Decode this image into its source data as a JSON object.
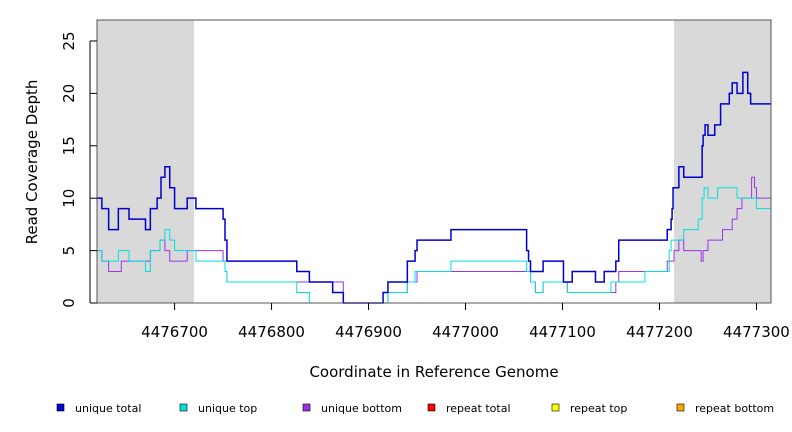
{
  "chart_data": {
    "type": "line",
    "xlabel": "Coordinate in Reference Genome",
    "ylabel": "Read Coverage Depth",
    "xlim": [
      4476620,
      4477315
    ],
    "ylim": [
      0,
      27
    ],
    "x_ticks": [
      4476700,
      4476800,
      4476900,
      4477000,
      4477100,
      4477200,
      4477300
    ],
    "x_tick_labels": [
      "4476700",
      "4476800",
      "4476900",
      "4477000",
      "4477100",
      "4477200",
      "4477300"
    ],
    "y_ticks": [
      0,
      5,
      10,
      15,
      20,
      25
    ],
    "y_tick_labels": [
      "0",
      "5",
      "10",
      "15",
      "20",
      "25"
    ],
    "shaded_regions": [
      [
        4476620,
        4476720
      ],
      [
        4477215,
        4477315
      ]
    ],
    "legend_position": "bottom",
    "series": [
      {
        "name": "unique total",
        "color": "#0000cc",
        "step_x": [
          4476620,
          4476625,
          4476632,
          4476642,
          4476653,
          4476670,
          4476675,
          4476682,
          4476686,
          4476690,
          4476695,
          4476700,
          4476713,
          4476722,
          4476750,
          4476752,
          4476754,
          4476826,
          4476839,
          4476863,
          4476874,
          4476915,
          4476920,
          4476940,
          4476948,
          4476950,
          4476952,
          4476985,
          4477063,
          4477065,
          4477067,
          4477072,
          4477080,
          4477101,
          4477105,
          4477110,
          4477134,
          4477143,
          4477155,
          4477158,
          4477185,
          4477208,
          4477210,
          4477212,
          4477213,
          4477214,
          4477215,
          4477220,
          4477225,
          4477244,
          4477245,
          4477247,
          4477250,
          4477257,
          4477263,
          4477272,
          4477275,
          4477280,
          4477286,
          4477291,
          4477294,
          4477297,
          4477299,
          4477300,
          4477305,
          4477315
        ],
        "step_y": [
          10,
          9,
          7,
          9,
          8,
          7,
          9,
          10,
          12,
          13,
          11,
          9,
          10,
          9,
          8,
          6,
          4,
          3,
          2,
          1,
          0,
          1,
          2,
          4,
          5,
          6,
          6,
          7,
          5,
          4,
          3,
          3,
          4,
          2,
          2,
          3,
          2,
          3,
          4,
          6,
          6,
          7,
          7,
          8,
          9,
          11,
          11,
          13,
          12,
          15,
          16,
          17,
          16,
          17,
          19,
          20,
          21,
          20,
          22,
          20,
          19,
          19,
          19,
          19,
          19,
          19
        ]
      },
      {
        "name": "unique top",
        "color": "#00e0e0",
        "step_x": [
          4476620,
          4476625,
          4476632,
          4476642,
          4476653,
          4476670,
          4476675,
          4476685,
          4476690,
          4476695,
          4476700,
          4476722,
          4476750,
          4476752,
          4476754,
          4476826,
          4476839,
          4476874,
          4476920,
          4476940,
          4476948,
          4476950,
          4476985,
          4477063,
          4477067,
          4477072,
          4477080,
          4477105,
          4477143,
          4477150,
          4477185,
          4477208,
          4477210,
          4477212,
          4477215,
          4477225,
          4477240,
          4477244,
          4477246,
          4477250,
          4477260,
          4477280,
          4477290,
          4477300,
          4477315
        ],
        "step_y": [
          5,
          4,
          4,
          5,
          4,
          3,
          5,
          6,
          7,
          6,
          5,
          4,
          4,
          3,
          2,
          1,
          0,
          0,
          1,
          2,
          3,
          3,
          4,
          3,
          2,
          1,
          2,
          1,
          1,
          2,
          3,
          3,
          5,
          6,
          6,
          7,
          8,
          10,
          11,
          10,
          11,
          10,
          10,
          9,
          9
        ]
      },
      {
        "name": "unique bottom",
        "color": "#9a32e6",
        "step_x": [
          4476620,
          4476625,
          4476632,
          4476645,
          4476670,
          4476675,
          4476685,
          4476690,
          4476695,
          4476700,
          4476713,
          4476722,
          4476750,
          4476752,
          4476754,
          4476826,
          4476874,
          4476920,
          4476940,
          4476950,
          4476985,
          4477063,
          4477067,
          4477072,
          4477080,
          4477101,
          4477105,
          4477110,
          4477134,
          4477143,
          4477155,
          4477158,
          4477185,
          4477208,
          4477215,
          4477220,
          4477225,
          4477240,
          4477243,
          4477245,
          4477250,
          4477265,
          4477275,
          4477280,
          4477285,
          4477295,
          4477298,
          4477300,
          4477315
        ],
        "step_y": [
          5,
          4,
          3,
          4,
          4,
          5,
          6,
          5,
          4,
          4,
          5,
          5,
          4,
          3,
          2,
          2,
          0,
          1,
          2,
          3,
          3,
          3,
          2,
          1,
          2,
          2,
          1,
          1,
          1,
          1,
          2,
          3,
          3,
          4,
          5,
          6,
          5,
          5,
          4,
          5,
          6,
          7,
          8,
          9,
          10,
          12,
          11,
          10,
          10
        ]
      },
      {
        "name": "repeat total",
        "color": "#ff0000",
        "step_x": [
          4476620,
          4477315
        ],
        "step_y": [
          0,
          0
        ]
      },
      {
        "name": "repeat top",
        "color": "#ffff00",
        "step_x": [
          4476620,
          4477315
        ],
        "step_y": [
          0,
          0
        ]
      },
      {
        "name": "repeat bottom",
        "color": "#ffa500",
        "step_x": [
          4476620,
          4477315
        ],
        "step_y": [
          0,
          0
        ]
      }
    ]
  }
}
